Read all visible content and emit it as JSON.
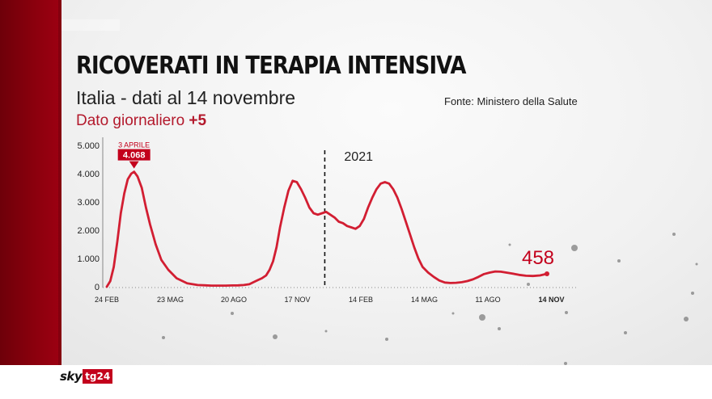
{
  "header": {
    "title": "RICOVERATI IN TERAPIA INTENSIVA",
    "subtitle": "Italia - dati al 14 novembre",
    "source": "Fonte: Ministero della Salute",
    "daily_label": "Dato giornaliero",
    "daily_value": "+5"
  },
  "brand": {
    "sky": "sky",
    "channel": "tg24"
  },
  "colors": {
    "accent": "#c3001c",
    "line": "#d21e32",
    "band": "#8a000d"
  },
  "chart_data": {
    "type": "line",
    "title": "RICOVERATI IN TERAPIA INTENSIVA",
    "x_ticks": [
      "24 FEB",
      "23 MAG",
      "20 AGO",
      "17 NOV",
      "14 FEB",
      "14 MAG",
      "11 AGO",
      "14 NOV"
    ],
    "y_ticks": [
      "0",
      "1.000",
      "2.000",
      "3.000",
      "4.000",
      "5.000"
    ],
    "ylim": [
      0,
      5000
    ],
    "year_marker": {
      "label": "2021",
      "x_day": 312
    },
    "peak_annotation": {
      "label": "3 APRILE",
      "value_label": "4.068",
      "x_day": 39,
      "y": 4068
    },
    "last_value_label": "458",
    "series": [
      {
        "x_days": [
          0,
          5,
          10,
          15,
          20,
          25,
          30,
          35,
          39,
          44,
          50,
          56,
          62,
          70,
          78,
          88,
          100,
          115,
          130,
          150,
          170,
          180,
          188,
          196,
          204,
          210,
          216,
          222,
          228,
          233,
          238,
          243,
          248,
          254,
          260,
          266,
          272,
          278,
          284,
          290,
          296,
          302,
          308,
          314,
          320,
          326,
          332,
          338,
          344,
          350,
          356,
          362,
          368,
          374,
          380,
          386,
          392,
          398,
          404,
          410,
          416,
          422,
          428,
          434,
          440,
          446,
          452,
          460,
          468,
          476,
          484,
          492,
          500,
          508,
          516,
          524,
          532,
          540,
          548,
          556,
          564,
          572,
          580,
          590,
          600,
          610,
          620,
          630
        ],
        "y": [
          0,
          200,
          700,
          1600,
          2600,
          3300,
          3800,
          4000,
          4068,
          3900,
          3500,
          2800,
          2200,
          1500,
          950,
          600,
          300,
          120,
          60,
          40,
          40,
          45,
          50,
          60,
          90,
          160,
          230,
          300,
          400,
          600,
          900,
          1400,
          2100,
          2800,
          3400,
          3750,
          3700,
          3450,
          3150,
          2800,
          2600,
          2550,
          2600,
          2650,
          2550,
          2450,
          2300,
          2250,
          2150,
          2100,
          2050,
          2150,
          2400,
          2800,
          3150,
          3450,
          3650,
          3700,
          3650,
          3450,
          3150,
          2750,
          2300,
          1850,
          1400,
          1000,
          700,
          500,
          350,
          220,
          150,
          130,
          140,
          160,
          200,
          260,
          350,
          450,
          500,
          540,
          530,
          500,
          470,
          420,
          390,
          380,
          400,
          458
        ]
      }
    ],
    "grid": false,
    "legend": "none"
  }
}
